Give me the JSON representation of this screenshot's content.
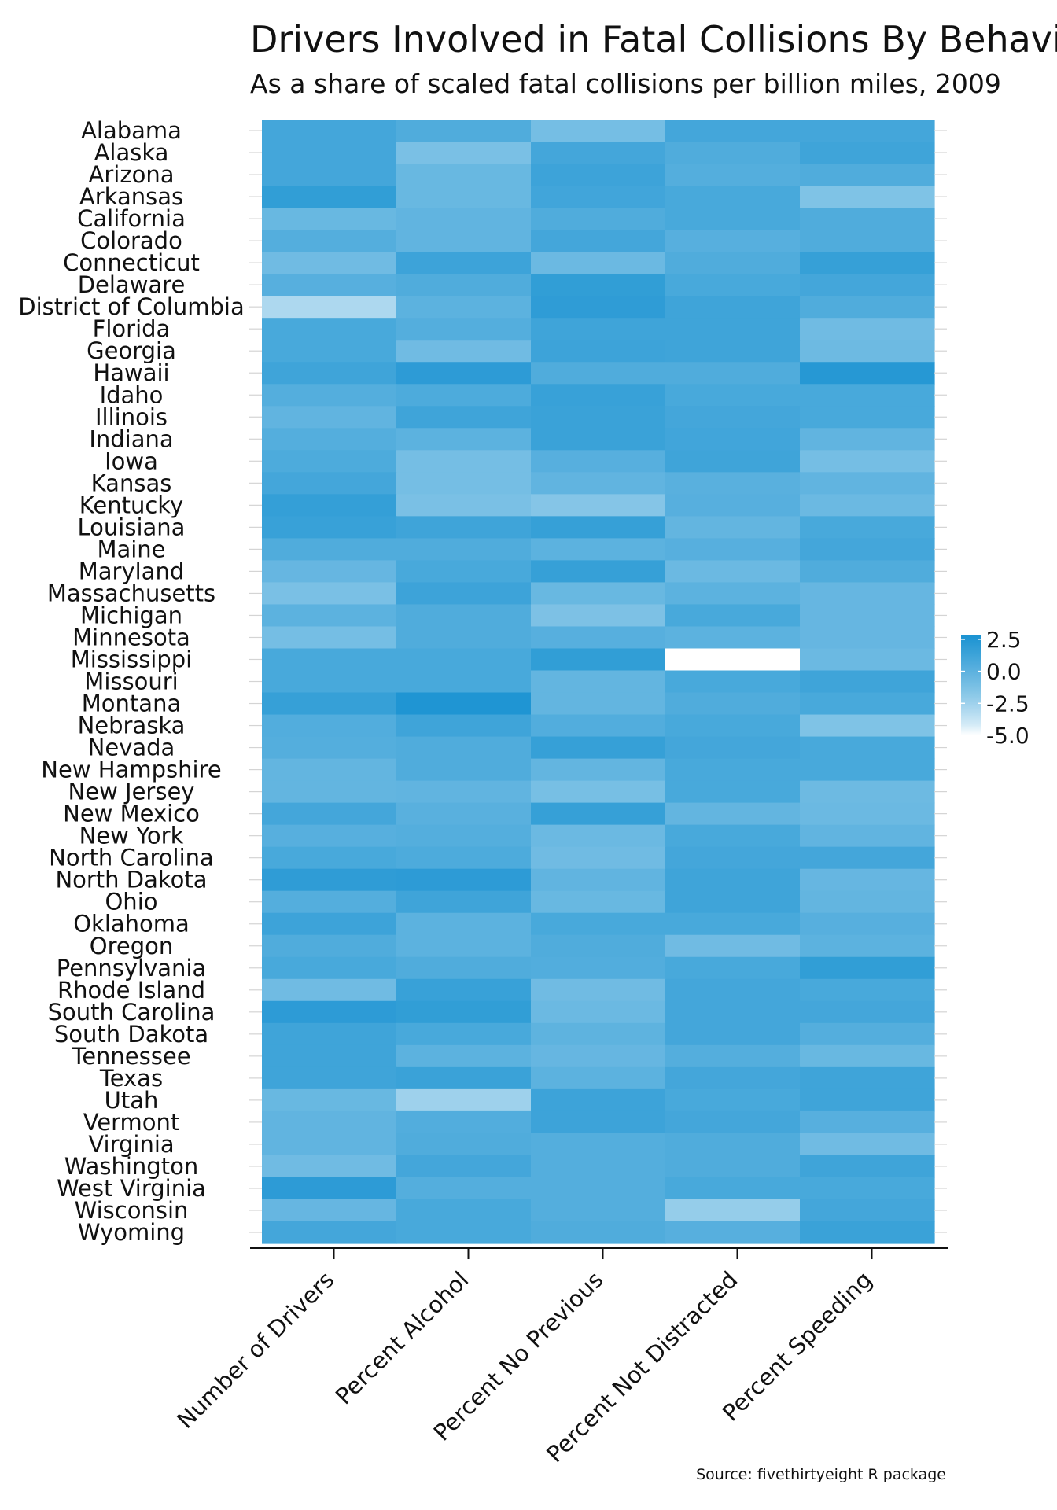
{
  "chart_data": {
    "type": "heatmap",
    "title": "Drivers Involved in Fatal Collisions By Behavior",
    "subtitle": "As a share of scaled fatal collisions per billion miles, 2009",
    "caption": "Source: fivethirtyeight R package",
    "columns": [
      "Number of Drivers",
      "Percent Alcohol",
      "Percent No Previous",
      "Percent Not Distracted",
      "Percent Speeding"
    ],
    "rows": [
      {
        "state": "Alabama",
        "values": [
          1.0,
          0.5,
          -1.0,
          1.0,
          1.0
        ]
      },
      {
        "state": "Alaska",
        "values": [
          1.0,
          -1.2,
          1.0,
          0.5,
          1.2
        ]
      },
      {
        "state": "Arizona",
        "values": [
          1.0,
          -0.5,
          1.3,
          0.3,
          0.5
        ]
      },
      {
        "state": "Arkansas",
        "values": [
          1.8,
          -0.5,
          1.1,
          0.8,
          -1.4
        ]
      },
      {
        "state": "California",
        "values": [
          -0.5,
          -0.2,
          0.5,
          0.8,
          0.5
        ]
      },
      {
        "state": "Colorado",
        "values": [
          0.3,
          -0.2,
          1.0,
          0.2,
          0.5
        ]
      },
      {
        "state": "Connecticut",
        "values": [
          -0.8,
          1.3,
          -0.6,
          0.5,
          1.6
        ]
      },
      {
        "state": "Delaware",
        "values": [
          0.2,
          0.5,
          1.8,
          0.8,
          1.0
        ]
      },
      {
        "state": "District of Columbia",
        "values": [
          -3.0,
          0.0,
          1.9,
          1.2,
          0.5
        ]
      },
      {
        "state": "Florida",
        "values": [
          0.8,
          0.3,
          1.2,
          1.2,
          -0.8
        ]
      },
      {
        "state": "Georgia",
        "values": [
          0.8,
          -0.8,
          1.3,
          1.2,
          -0.7
        ]
      },
      {
        "state": "Hawaii",
        "values": [
          1.2,
          2.0,
          0.5,
          0.5,
          2.3
        ]
      },
      {
        "state": "Idaho",
        "values": [
          0.3,
          0.6,
          1.5,
          0.8,
          0.8
        ]
      },
      {
        "state": "Illinois",
        "values": [
          -0.2,
          1.2,
          1.4,
          1.0,
          0.8
        ]
      },
      {
        "state": "Indiana",
        "values": [
          0.3,
          0.0,
          1.4,
          1.1,
          -0.2
        ]
      },
      {
        "state": "Iowa",
        "values": [
          0.6,
          -1.0,
          0.2,
          1.2,
          -1.0
        ]
      },
      {
        "state": "Kansas",
        "values": [
          1.0,
          -1.0,
          -0.2,
          0.1,
          -0.2
        ]
      },
      {
        "state": "Kentucky",
        "values": [
          1.7,
          -1.2,
          -1.6,
          0.2,
          -0.6
        ]
      },
      {
        "state": "Louisiana",
        "values": [
          1.5,
          1.2,
          1.6,
          -0.3,
          0.8
        ]
      },
      {
        "state": "Maine",
        "values": [
          0.5,
          0.5,
          0.0,
          0.2,
          1.0
        ]
      },
      {
        "state": "Maryland",
        "values": [
          -0.4,
          0.8,
          1.6,
          -0.6,
          0.5
        ]
      },
      {
        "state": "Massachusetts",
        "values": [
          -1.2,
          1.3,
          -0.5,
          0.0,
          -0.4
        ]
      },
      {
        "state": "Michigan",
        "values": [
          0.0,
          0.5,
          -1.3,
          0.8,
          -0.4
        ]
      },
      {
        "state": "Minnesota",
        "values": [
          -1.0,
          0.5,
          0.2,
          0.0,
          -0.4
        ]
      },
      {
        "state": "Mississippi",
        "values": [
          0.8,
          0.8,
          1.8,
          -5.0,
          -0.6
        ]
      },
      {
        "state": "Missouri",
        "values": [
          0.8,
          0.8,
          -0.3,
          0.8,
          1.2
        ]
      },
      {
        "state": "Montana",
        "values": [
          1.6,
          2.6,
          -0.3,
          0.5,
          0.8
        ]
      },
      {
        "state": "Nebraska",
        "values": [
          0.4,
          1.2,
          0.4,
          0.8,
          -1.4
        ]
      },
      {
        "state": "Nevada",
        "values": [
          0.3,
          0.5,
          1.6,
          1.0,
          0.8
        ]
      },
      {
        "state": "New Hampshire",
        "values": [
          -0.3,
          0.5,
          -0.3,
          0.8,
          0.8
        ]
      },
      {
        "state": "New Jersey",
        "values": [
          -0.3,
          -0.2,
          -1.1,
          0.8,
          -0.7
        ]
      },
      {
        "state": "New Mexico",
        "values": [
          1.0,
          0.1,
          1.6,
          -0.3,
          -0.6
        ]
      },
      {
        "state": "New York",
        "values": [
          0.2,
          0.3,
          -0.6,
          0.8,
          -0.2
        ]
      },
      {
        "state": "North Carolina",
        "values": [
          0.8,
          0.6,
          -0.8,
          1.0,
          1.0
        ]
      },
      {
        "state": "North Dakota",
        "values": [
          1.9,
          2.0,
          -0.2,
          1.2,
          -0.4
        ]
      },
      {
        "state": "Ohio",
        "values": [
          0.3,
          1.2,
          -0.5,
          1.2,
          -0.3
        ]
      },
      {
        "state": "Oklahoma",
        "values": [
          1.3,
          0.0,
          0.8,
          0.8,
          0.2
        ]
      },
      {
        "state": "Oregon",
        "values": [
          0.5,
          0.0,
          0.5,
          -0.8,
          0.0
        ]
      },
      {
        "state": "Pennsylvania",
        "values": [
          0.8,
          0.5,
          0.4,
          0.8,
          1.8
        ]
      },
      {
        "state": "Rhode Island",
        "values": [
          -0.8,
          1.5,
          -0.8,
          1.0,
          0.8
        ]
      },
      {
        "state": "South Carolina",
        "values": [
          2.0,
          1.8,
          -0.6,
          1.0,
          1.0
        ]
      },
      {
        "state": "South Dakota",
        "values": [
          1.2,
          0.8,
          -0.1,
          1.0,
          0.3
        ]
      },
      {
        "state": "Tennessee",
        "values": [
          1.2,
          0.0,
          -0.4,
          0.3,
          -0.5
        ]
      },
      {
        "state": "Texas",
        "values": [
          1.2,
          1.4,
          0.0,
          1.0,
          1.2
        ]
      },
      {
        "state": "Utah",
        "values": [
          -0.5,
          -2.5,
          1.3,
          0.8,
          1.2
        ]
      },
      {
        "state": "Vermont",
        "values": [
          -0.2,
          0.4,
          1.3,
          1.0,
          0.2
        ]
      },
      {
        "state": "Virginia",
        "values": [
          -0.2,
          0.5,
          0.3,
          0.5,
          -0.8
        ]
      },
      {
        "state": "Washington",
        "values": [
          -0.8,
          1.0,
          0.3,
          0.5,
          1.2
        ]
      },
      {
        "state": "West Virginia",
        "values": [
          2.0,
          0.3,
          0.3,
          0.8,
          0.8
        ]
      },
      {
        "state": "Wisconsin",
        "values": [
          -0.4,
          0.8,
          0.3,
          -2.2,
          1.0
        ]
      },
      {
        "state": "Wyoming",
        "values": [
          1.0,
          0.8,
          0.5,
          0.2,
          1.4
        ]
      }
    ],
    "scale": {
      "min": -5.0,
      "max": 2.8,
      "low_color": "#ffffff",
      "high_color": "#1b93d2",
      "legend_ticks": [
        2.5,
        0.0,
        -2.5,
        -5.0
      ],
      "legend_labels": [
        "2.5",
        "0.0",
        "-2.5",
        "-5.0"
      ]
    }
  }
}
